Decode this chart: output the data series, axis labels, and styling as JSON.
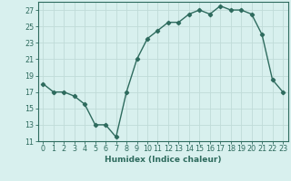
{
  "x": [
    0,
    1,
    2,
    3,
    4,
    5,
    6,
    7,
    8,
    9,
    10,
    11,
    12,
    13,
    14,
    15,
    16,
    17,
    18,
    19,
    20,
    21,
    22,
    23
  ],
  "y": [
    18.0,
    17.0,
    17.0,
    16.5,
    15.5,
    13.0,
    13.0,
    11.5,
    17.0,
    21.0,
    23.5,
    24.5,
    25.5,
    25.5,
    26.5,
    27.0,
    26.5,
    27.5,
    27.0,
    27.0,
    26.5,
    24.0,
    18.5,
    17.0
  ],
  "line_color": "#2e6b5e",
  "marker": "D",
  "markersize": 2.2,
  "linewidth": 1.0,
  "bg_color": "#d8f0ee",
  "grid_color": "#c0dbd8",
  "xlabel": "Humidex (Indice chaleur)",
  "ylabel": "",
  "xlim": [
    -0.5,
    23.5
  ],
  "ylim": [
    11,
    28
  ],
  "yticks": [
    11,
    13,
    15,
    17,
    19,
    21,
    23,
    25,
    27
  ],
  "xtick_labels": [
    "0",
    "1",
    "2",
    "3",
    "4",
    "5",
    "6",
    "7",
    "8",
    "9",
    "10",
    "11",
    "12",
    "13",
    "14",
    "15",
    "16",
    "17",
    "18",
    "19",
    "20",
    "21",
    "22",
    "23"
  ],
  "xlabel_fontsize": 6.5,
  "tick_fontsize": 5.8
}
